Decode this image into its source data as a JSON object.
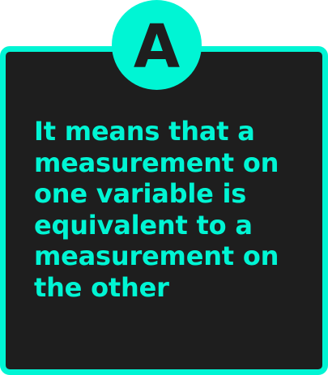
{
  "badge": {
    "letter": "A"
  },
  "answer": {
    "text": "It means that a\nmeasurement on\none variable is\nequivalent to a\nmeasurement on\nthe other"
  },
  "colors": {
    "accent": "#00f5d4",
    "card_background": "#1e1e1e",
    "page_background": "#ffffff"
  }
}
